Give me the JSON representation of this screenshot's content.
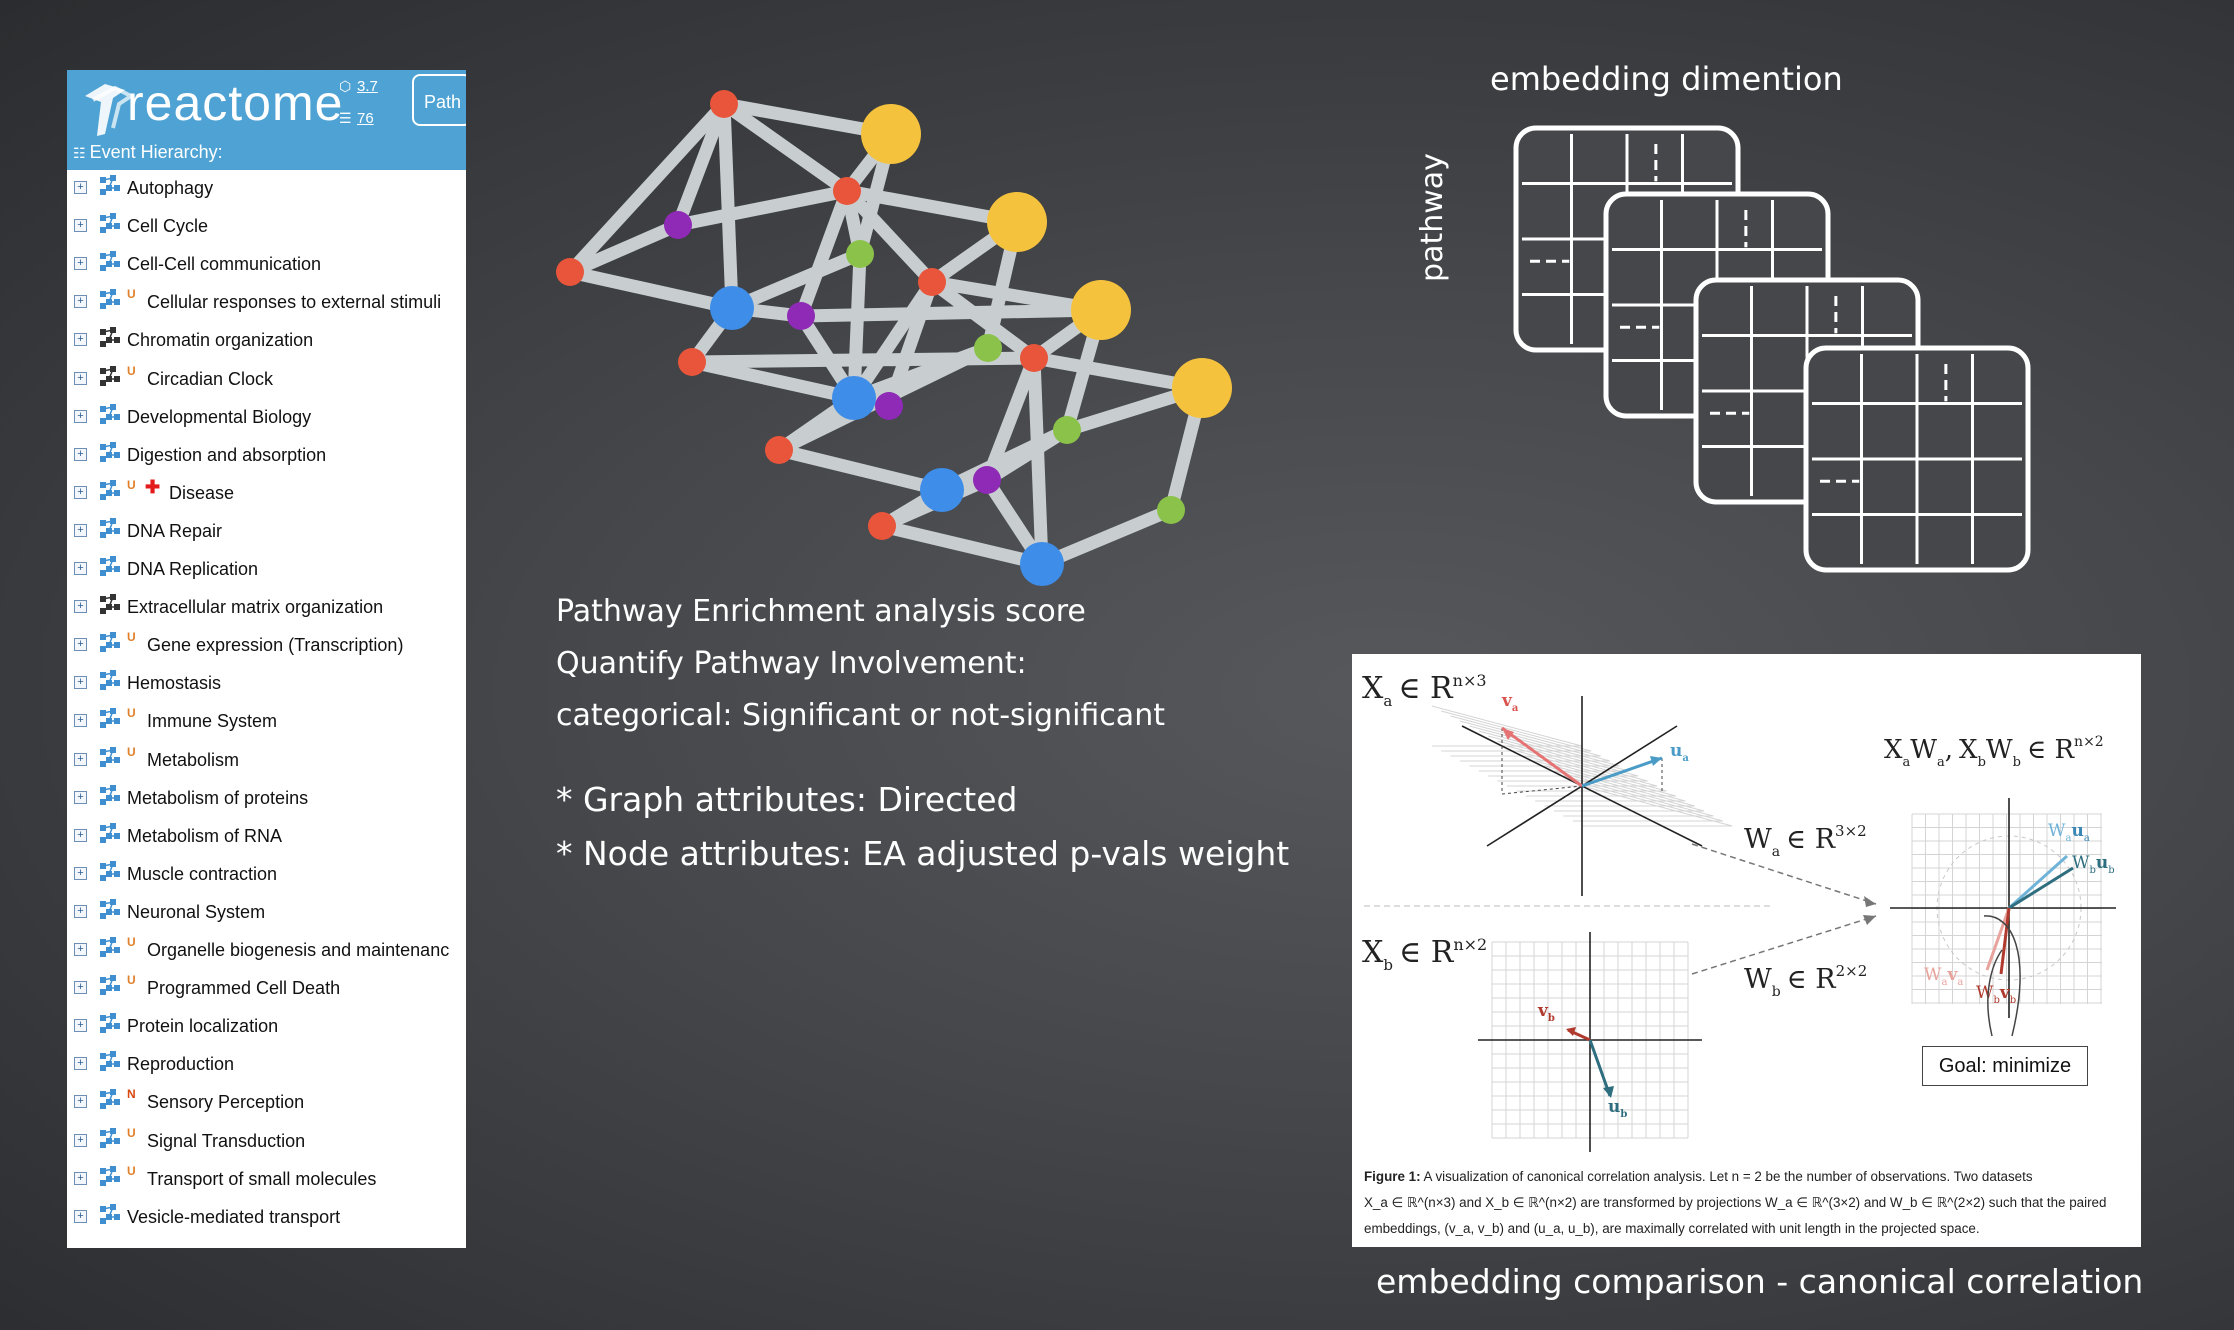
{
  "reactome": {
    "logo_text": "reactome",
    "stat_1": "3.7",
    "stat_2": "76",
    "path_button": "Path",
    "hierarchy_label": "Event Hierarchy:",
    "items": [
      {
        "label": "Autophagy",
        "badge": ""
      },
      {
        "label": "Cell Cycle",
        "badge": ""
      },
      {
        "label": "Cell-Cell communication",
        "badge": ""
      },
      {
        "label": "Cellular responses to external stimuli",
        "badge": "U"
      },
      {
        "label": "Chromatin organization",
        "badge": "",
        "dark": true
      },
      {
        "label": "Circadian Clock",
        "badge": "U",
        "dark": true
      },
      {
        "label": "Developmental Biology",
        "badge": ""
      },
      {
        "label": "Digestion and absorption",
        "badge": ""
      },
      {
        "label": "Disease",
        "badge": "U",
        "cross": true
      },
      {
        "label": "DNA Repair",
        "badge": ""
      },
      {
        "label": "DNA Replication",
        "badge": ""
      },
      {
        "label": "Extracellular matrix organization",
        "badge": "",
        "dark": true
      },
      {
        "label": "Gene expression (Transcription)",
        "badge": "U"
      },
      {
        "label": "Hemostasis",
        "badge": ""
      },
      {
        "label": "Immune System",
        "badge": "U"
      },
      {
        "label": "Metabolism",
        "badge": "U"
      },
      {
        "label": "Metabolism of proteins",
        "badge": ""
      },
      {
        "label": "Metabolism of RNA",
        "badge": ""
      },
      {
        "label": "Muscle contraction",
        "badge": ""
      },
      {
        "label": "Neuronal System",
        "badge": ""
      },
      {
        "label": "Organelle biogenesis and maintenanc",
        "badge": "U"
      },
      {
        "label": "Programmed Cell Death",
        "badge": "U"
      },
      {
        "label": "Protein localization",
        "badge": ""
      },
      {
        "label": "Reproduction",
        "badge": ""
      },
      {
        "label": "Sensory Perception",
        "badge": "N"
      },
      {
        "label": "Signal Transduction",
        "badge": "U"
      },
      {
        "label": "Transport of small molecules",
        "badge": "U"
      },
      {
        "label": "Vesicle-mediated transport",
        "badge": ""
      }
    ]
  },
  "enrichment": {
    "line_1": "Pathway Enrichment analysis score",
    "line_2": "Quantify Pathway Involvement:",
    "line_3": "categorical: Significant or not-significant"
  },
  "attributes": {
    "graph": "* Graph attributes: Directed",
    "node": "* Node attributes: EA adjusted p-vals weight"
  },
  "embedding": {
    "title": "embedding dimention",
    "axis_label": "pathway"
  },
  "cca": {
    "xa_label": "X",
    "xa_sub": "a",
    "xa_set": "∈ R",
    "xa_sup": "n×3",
    "xb_label": "X",
    "xb_sub": "b",
    "xb_set": "∈ R",
    "xb_sup": "n×2",
    "wa_label": "W",
    "wa_sub": "a",
    "wa_set": "∈ R",
    "wa_sup": "3×2",
    "wb_label": "W",
    "wb_sub": "b",
    "wb_set": "∈ R",
    "wb_sup": "2×2",
    "proj_a": "X",
    "proj_a_sub1": "a",
    "proj_a_w": "W",
    "proj_a_sub2": "a",
    "proj_comma": ",",
    "proj_b": "X",
    "proj_b_sub1": "b",
    "proj_b_w": "W",
    "proj_b_sub2": "b",
    "proj_set": "∈ R",
    "proj_sup": "n×2",
    "va": "v",
    "va_sub": "a",
    "ua": "u",
    "ua_sub": "a",
    "vb": "v",
    "vb_sub": "b",
    "ub": "u",
    "ub_sub": "b",
    "wa_ua": "W",
    "wa_ua_sub": "a",
    "wa_ua_vec": "u",
    "wa_ua_vec_sub": "a",
    "wb_ub": "W",
    "wb_ub_sub": "b",
    "wb_ub_vec": "u",
    "wb_ub_vec_sub": "b",
    "wa_va": "W",
    "wa_va_sub": "a",
    "wa_va_vec": "v",
    "wa_va_vec_sub": "a",
    "wb_vb": "W",
    "wb_vb_sub": "b",
    "wb_vb_vec": "v",
    "wb_vb_vec_sub": "b",
    "goal": "Goal: minimize",
    "caption_bold": "Figure 1:",
    "caption_1": " A visualization of canonical correlation analysis. Let n = 2 be the number of observations. Two datasets",
    "caption_2": "X_a ∈ ℝ^(n×3) and X_b ∈ ℝ^(n×2) are transformed by projections W_a ∈ ℝ^(3×2) and W_b ∈ ℝ^(2×2) such that the paired",
    "caption_3": "embeddings, (v_a, v_b) and (u_a, u_b), are maximally correlated with unit length in the projected space.",
    "footer": "embedding comparison - canonical correlation"
  }
}
